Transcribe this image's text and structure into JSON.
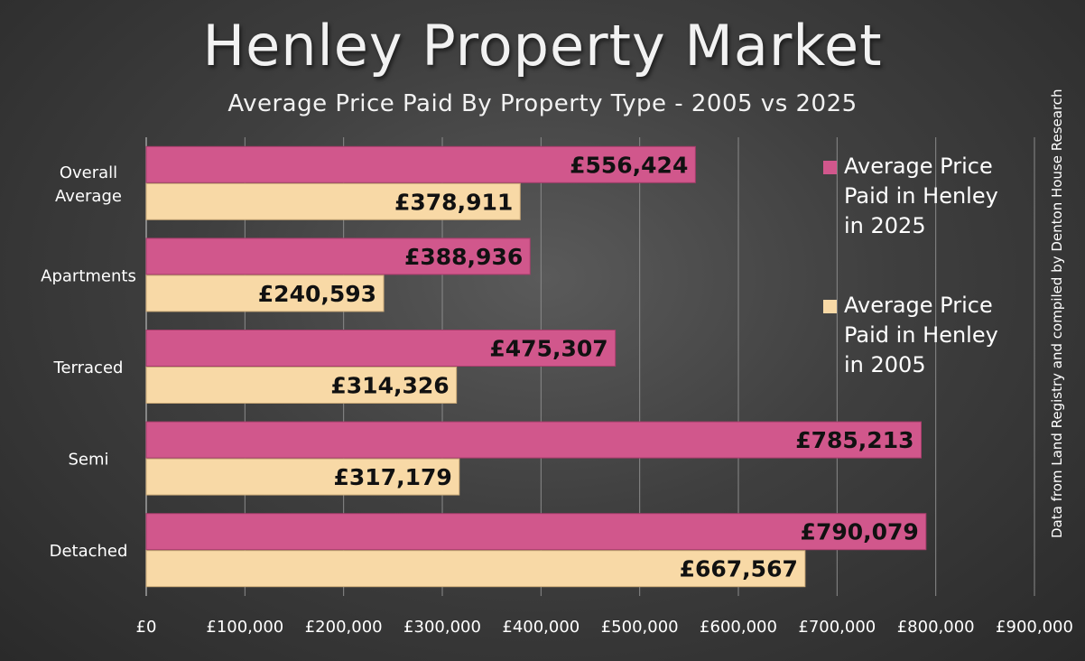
{
  "chart_data": {
    "type": "bar",
    "orientation": "horizontal",
    "title": "Henley Property Market",
    "subtitle": "Average Price Paid By Property Type - 2005 vs 2025",
    "categories": [
      "Overall Average",
      "Apartments",
      "Terraced",
      "Semi",
      "Detached"
    ],
    "category_lines": [
      [
        "Overall",
        "Average"
      ],
      [
        "Apartments"
      ],
      [
        "Terraced"
      ],
      [
        "Semi"
      ],
      [
        "Detached"
      ]
    ],
    "series": [
      {
        "name": "Average Price Paid in Henley in 2025",
        "color": "#d1578c",
        "values": [
          556424,
          388936,
          475307,
          785213,
          790079
        ],
        "labels": [
          "£556,424",
          "£388,936",
          "£475,307",
          "£785,213",
          "£790,079"
        ]
      },
      {
        "name": "Average Price Paid in Henley in 2005",
        "color": "#f8d9a6",
        "values": [
          378911,
          240593,
          314326,
          317179,
          667567
        ],
        "labels": [
          "£378,911",
          "£240,593",
          "£314,326",
          "£317,179",
          "£667,567"
        ]
      }
    ],
    "xlim": [
      0,
      900000
    ],
    "xticks": [
      0,
      100000,
      200000,
      300000,
      400000,
      500000,
      600000,
      700000,
      800000,
      900000
    ],
    "xtick_labels": [
      "£0",
      "£100,000",
      "£200,000",
      "£300,000",
      "£400,000",
      "£500,000",
      "£600,000",
      "£700,000",
      "£800,000",
      "£900,000"
    ],
    "grid": "vertical",
    "legend_position": "right"
  },
  "legend": {
    "item_2025": {
      "lines": [
        "Average Price",
        "Paid in Henley",
        "in 2025"
      ]
    },
    "item_2005": {
      "lines": [
        "Average Price",
        "Paid in Henley",
        "in 2005"
      ]
    }
  },
  "source_note": "Data from Land Registry and compiled by Denton House Research"
}
